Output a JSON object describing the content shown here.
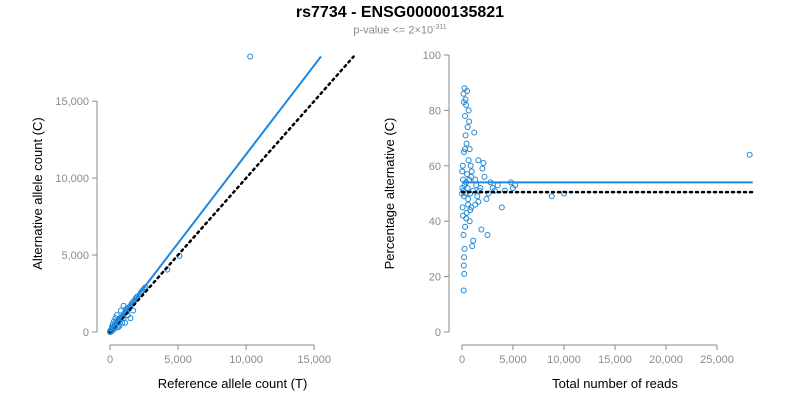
{
  "title": "rs7734 - ENSG00000135821",
  "subtitle": {
    "prefix": "p-value <= 2×10",
    "exponent": "-311"
  },
  "colors": {
    "points": "#1e88d8",
    "fit_line": "#1e88e5",
    "reference_line": "#000000",
    "axis": "#8a8a8a",
    "tick_text": "#8a8a8a"
  },
  "chart_data": [
    {
      "type": "scatter",
      "xlabel": "Reference allele count (T)",
      "ylabel": "Alternative allele count (C)",
      "xlim": [
        0,
        18000
      ],
      "ylim": [
        0,
        18000
      ],
      "xticks": [
        {
          "value": 0,
          "label": "0"
        },
        {
          "value": 5000,
          "label": "5,000"
        },
        {
          "value": 10000,
          "label": "10,000"
        },
        {
          "value": 15000,
          "label": "15,000"
        }
      ],
      "yticks": [
        {
          "value": 0,
          "label": "0"
        },
        {
          "value": 5000,
          "label": "5,000"
        },
        {
          "value": 10000,
          "label": "10,000"
        },
        {
          "value": 15000,
          "label": "15,000"
        }
      ],
      "grid": false,
      "points": [
        [
          10300,
          17900
        ],
        [
          5100,
          4950
        ],
        [
          4200,
          4050
        ],
        [
          2300,
          2600
        ],
        [
          2400,
          2700
        ],
        [
          2200,
          2450
        ],
        [
          2000,
          2300
        ],
        [
          1900,
          2200
        ],
        [
          1700,
          1950
        ],
        [
          1600,
          1850
        ],
        [
          1500,
          1700
        ],
        [
          1400,
          1600
        ],
        [
          1300,
          1500
        ],
        [
          1250,
          1350
        ],
        [
          1200,
          1300
        ],
        [
          1100,
          1250
        ],
        [
          1000,
          1150
        ],
        [
          950,
          1050
        ],
        [
          900,
          1000
        ],
        [
          850,
          950
        ],
        [
          800,
          900
        ],
        [
          750,
          850
        ],
        [
          700,
          800
        ],
        [
          650,
          700
        ],
        [
          600,
          650
        ],
        [
          550,
          600
        ],
        [
          500,
          560
        ],
        [
          450,
          500
        ],
        [
          400,
          450
        ],
        [
          350,
          400
        ],
        [
          300,
          350
        ],
        [
          250,
          300
        ],
        [
          200,
          250
        ],
        [
          150,
          200
        ],
        [
          100,
          150
        ],
        [
          50,
          80
        ],
        [
          30,
          40
        ],
        [
          20,
          25
        ],
        [
          10,
          12
        ],
        [
          5,
          6
        ],
        [
          1000,
          1700
        ],
        [
          1500,
          900
        ],
        [
          800,
          1400
        ],
        [
          1100,
          600
        ],
        [
          500,
          1100
        ],
        [
          300,
          700
        ],
        [
          700,
          400
        ],
        [
          400,
          900
        ],
        [
          200,
          500
        ],
        [
          600,
          300
        ],
        [
          1700,
          1400
        ],
        [
          1300,
          1100
        ],
        [
          900,
          600
        ],
        [
          250,
          150
        ],
        [
          150,
          350
        ],
        [
          2500,
          2800
        ],
        [
          2600,
          2900
        ],
        [
          1800,
          2050
        ],
        [
          1000,
          900
        ],
        [
          1200,
          1500
        ],
        [
          100,
          50
        ],
        [
          60,
          120
        ],
        [
          80,
          30
        ],
        [
          40,
          90
        ],
        [
          0,
          20
        ],
        [
          20,
          0
        ],
        [
          350,
          250
        ],
        [
          450,
          650
        ],
        [
          550,
          400
        ],
        [
          650,
          850
        ]
      ],
      "fit_line": {
        "x": [
          0,
          15500
        ],
        "y": [
          0,
          17900
        ]
      },
      "reference_line": {
        "x": [
          0,
          17900
        ],
        "y": [
          0,
          17900
        ]
      }
    },
    {
      "type": "scatter",
      "xlabel": "Total number of reads",
      "ylabel": "Percentage alternative (C)",
      "xlim": [
        0,
        30000
      ],
      "ylim": [
        0,
        100
      ],
      "xticks": [
        {
          "value": 0,
          "label": "0"
        },
        {
          "value": 5000,
          "label": "5,000"
        },
        {
          "value": 10000,
          "label": "10,000"
        },
        {
          "value": 15000,
          "label": "15,000"
        },
        {
          "value": 20000,
          "label": "20,000"
        },
        {
          "value": 25000,
          "label": "25,000"
        }
      ],
      "yticks": [
        {
          "value": 0,
          "label": "0"
        },
        {
          "value": 20,
          "label": "20"
        },
        {
          "value": 40,
          "label": "40"
        },
        {
          "value": 60,
          "label": "60"
        },
        {
          "value": 80,
          "label": "80"
        },
        {
          "value": 100,
          "label": "100"
        }
      ],
      "grid": false,
      "points": [
        [
          28200,
          64
        ],
        [
          10000,
          50
        ],
        [
          8800,
          49
        ],
        [
          5200,
          53
        ],
        [
          5000,
          52
        ],
        [
          4800,
          54
        ],
        [
          4200,
          51
        ],
        [
          3900,
          45
        ],
        [
          3500,
          53
        ],
        [
          3000,
          52
        ],
        [
          2800,
          54
        ],
        [
          2600,
          50
        ],
        [
          2400,
          48
        ],
        [
          2200,
          56
        ],
        [
          2000,
          59
        ],
        [
          1900,
          37
        ],
        [
          1800,
          52
        ],
        [
          1600,
          47
        ],
        [
          1500,
          49
        ],
        [
          1400,
          53
        ],
        [
          1300,
          55
        ],
        [
          1200,
          72
        ],
        [
          1100,
          33
        ],
        [
          1000,
          31
        ],
        [
          950,
          58
        ],
        [
          900,
          45
        ],
        [
          850,
          60
        ],
        [
          800,
          50
        ],
        [
          750,
          40
        ],
        [
          700,
          55
        ],
        [
          650,
          62
        ],
        [
          600,
          48
        ],
        [
          550,
          52
        ],
        [
          500,
          57
        ],
        [
          450,
          43
        ],
        [
          400,
          54
        ],
        [
          350,
          50
        ],
        [
          300,
          66
        ],
        [
          250,
          53
        ],
        [
          200,
          49
        ],
        [
          150,
          51
        ],
        [
          100,
          55
        ],
        [
          80,
          60
        ],
        [
          60,
          45
        ],
        [
          40,
          52
        ],
        [
          20,
          58
        ],
        [
          10,
          50
        ],
        [
          300,
          78
        ],
        [
          200,
          83
        ],
        [
          400,
          82
        ],
        [
          150,
          86
        ],
        [
          250,
          88
        ],
        [
          500,
          87
        ],
        [
          700,
          76
        ],
        [
          350,
          71
        ],
        [
          450,
          68
        ],
        [
          200,
          65
        ],
        [
          100,
          42
        ],
        [
          300,
          38
        ],
        [
          150,
          35
        ],
        [
          250,
          30
        ],
        [
          200,
          27
        ],
        [
          180,
          24
        ],
        [
          220,
          21
        ],
        [
          160,
          15
        ],
        [
          600,
          46
        ],
        [
          800,
          44
        ],
        [
          900,
          56
        ],
        [
          1100,
          51
        ],
        [
          1300,
          46
        ],
        [
          2100,
          61
        ],
        [
          1700,
          51
        ],
        [
          2500,
          35
        ],
        [
          3200,
          51
        ],
        [
          1600,
          62
        ],
        [
          750,
          66
        ],
        [
          550,
          74
        ],
        [
          650,
          80
        ],
        [
          350,
          84
        ],
        [
          420,
          41
        ]
      ],
      "fit_line": {
        "x": [
          0,
          28500
        ],
        "y": [
          54,
          54
        ]
      },
      "reference_line": {
        "x": [
          0,
          28500
        ],
        "y": [
          50.5,
          50.5
        ]
      }
    }
  ]
}
